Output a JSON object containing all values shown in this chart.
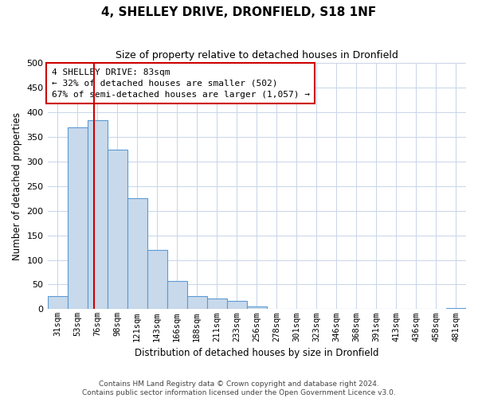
{
  "title": "4, SHELLEY DRIVE, DRONFIELD, S18 1NF",
  "subtitle": "Size of property relative to detached houses in Dronfield",
  "xlabel": "Distribution of detached houses by size in Dronfield",
  "ylabel": "Number of detached properties",
  "bar_labels": [
    "31sqm",
    "53sqm",
    "76sqm",
    "98sqm",
    "121sqm",
    "143sqm",
    "166sqm",
    "188sqm",
    "211sqm",
    "233sqm",
    "256sqm",
    "278sqm",
    "301sqm",
    "323sqm",
    "346sqm",
    "368sqm",
    "391sqm",
    "413sqm",
    "436sqm",
    "458sqm",
    "481sqm"
  ],
  "bar_values": [
    27,
    370,
    385,
    325,
    225,
    120,
    58,
    27,
    22,
    17,
    6,
    1,
    0,
    0,
    0,
    0,
    0,
    0,
    0,
    0,
    2
  ],
  "bar_color": "#c8d9eb",
  "bar_edge_color": "#5b9bd5",
  "bar_edge_width": 0.8,
  "vline_color": "#cc0000",
  "annotation_title": "4 SHELLEY DRIVE: 83sqm",
  "annotation_line1": "← 32% of detached houses are smaller (502)",
  "annotation_line2": "67% of semi-detached houses are larger (1,057) →",
  "annotation_box_color": "#ffffff",
  "annotation_box_edge": "#cc0000",
  "ylim": [
    0,
    500
  ],
  "yticks": [
    0,
    50,
    100,
    150,
    200,
    250,
    300,
    350,
    400,
    450,
    500
  ],
  "background_color": "#ffffff",
  "grid_color": "#c8d4e8",
  "footer_line1": "Contains HM Land Registry data © Crown copyright and database right 2024.",
  "footer_line2": "Contains public sector information licensed under the Open Government Licence v3.0."
}
